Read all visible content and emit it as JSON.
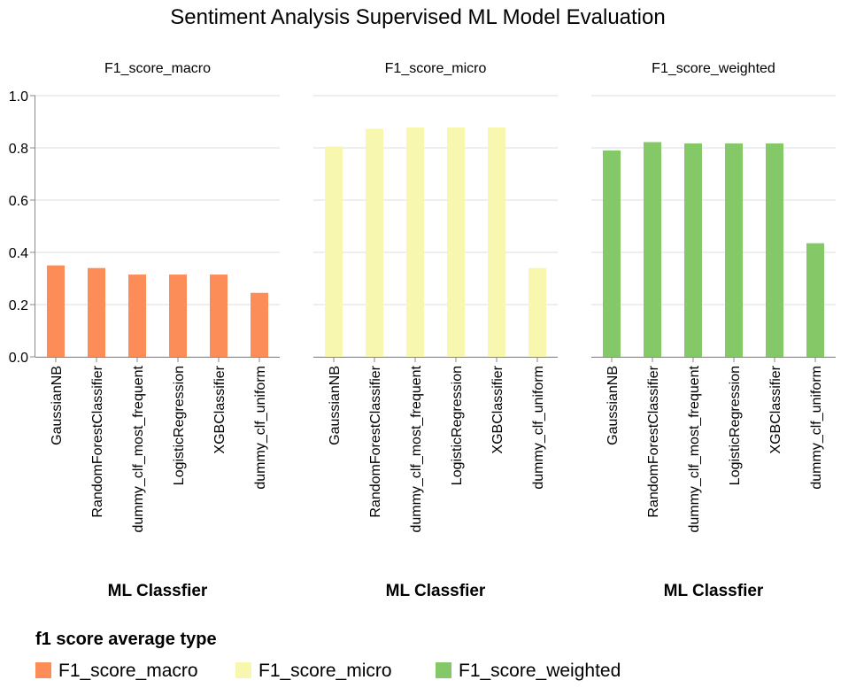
{
  "chart_data": {
    "type": "bar",
    "title": "Sentiment Analysis Supervised ML Model Evaluation",
    "xlabel": "ML Classfier",
    "ylabel": "",
    "ylim": [
      0,
      1.0
    ],
    "yticks": [
      "0.0",
      "0.2",
      "0.4",
      "0.6",
      "0.8",
      "1.0"
    ],
    "grid": true,
    "categories": [
      "GaussianNB",
      "RandomForestClassifier",
      "dummy_clf_most_frequent",
      "LogisticRegression",
      "XGBClassifier",
      "dummy_clf_uniform"
    ],
    "series": [
      {
        "name": "F1_score_macro",
        "color": "#fc8d59",
        "values": [
          0.35,
          0.34,
          0.315,
          0.315,
          0.315,
          0.245
        ]
      },
      {
        "name": "F1_score_micro",
        "color": "#f7f7b0",
        "values": [
          0.805,
          0.873,
          0.878,
          0.878,
          0.878,
          0.34
        ]
      },
      {
        "name": "F1_score_weighted",
        "color": "#84c868",
        "values": [
          0.79,
          0.822,
          0.817,
          0.817,
          0.817,
          0.435
        ]
      }
    ],
    "legend": {
      "title": "f1 score average type",
      "placement": "bottom-left"
    }
  }
}
